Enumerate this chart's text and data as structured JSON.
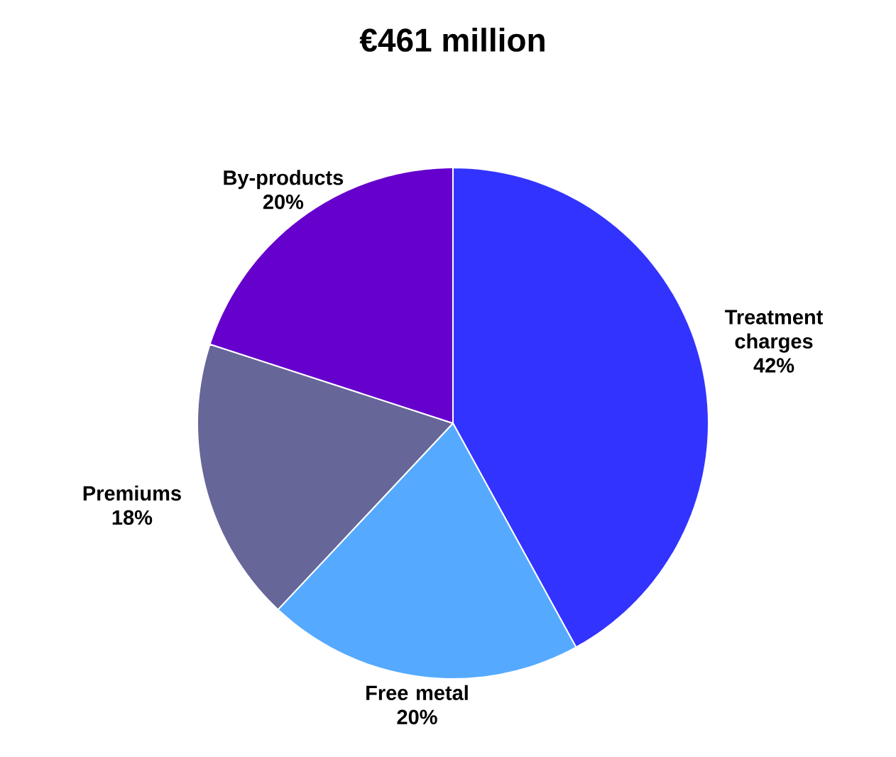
{
  "chart_data": {
    "type": "pie",
    "title": "€461 million",
    "categories": [
      "Treatment charges",
      "Free metal",
      "Premiums",
      "By-products"
    ],
    "values": [
      42,
      20,
      18,
      20
    ],
    "colors": [
      "#3333ff",
      "#55aaff",
      "#666699",
      "#6600cc"
    ],
    "value_labels": [
      "42%",
      "20%",
      "18%",
      "20%"
    ]
  }
}
